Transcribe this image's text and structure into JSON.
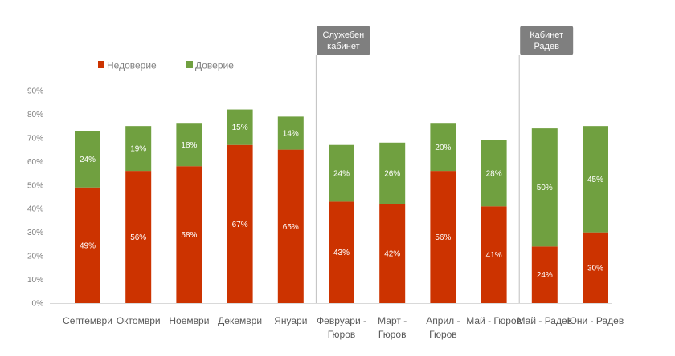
{
  "chart_data": {
    "type": "bar",
    "stacked": true,
    "categories": [
      "Септември",
      "Октомври",
      "Ноември",
      "Декември",
      "Януари",
      "Февруари -\nГюров",
      "Март -\nГюров",
      "Април -\nГюров",
      "Май - Гюров",
      "Май - Радев",
      "Юни - Радев"
    ],
    "series": [
      {
        "name": "Недоверие",
        "color": "#cc3300",
        "values": [
          49,
          56,
          58,
          67,
          65,
          43,
          42,
          56,
          41,
          24,
          30
        ]
      },
      {
        "name": "Доверие",
        "color": "#70a040",
        "values": [
          24,
          19,
          18,
          15,
          14,
          24,
          26,
          20,
          28,
          50,
          45
        ]
      }
    ],
    "ylim": [
      0,
      90
    ],
    "yticks": [
      "0%",
      "10%",
      "20%",
      "30%",
      "40%",
      "50%",
      "60%",
      "70%",
      "80%",
      "90%"
    ],
    "value_suffix": "%",
    "grid": false,
    "legend": "top-left",
    "annotations": [
      {
        "text": "Служебен\nкабинет",
        "after_category": 4
      },
      {
        "text": "Кабинет\nРадев",
        "after_category": 8
      }
    ]
  }
}
